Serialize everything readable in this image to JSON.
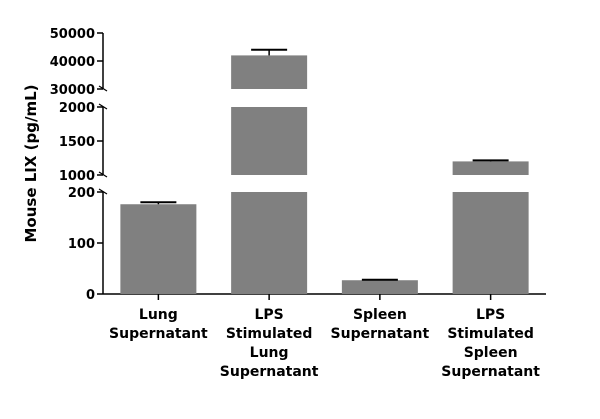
{
  "chart_data": {
    "type": "bar",
    "title": "",
    "xlabel": "",
    "ylabel": "Mouse LIX (pg/mL)",
    "y_axis_breaks": [
      {
        "range": [
          0,
          200
        ],
        "ticks": [
          0,
          100,
          200
        ],
        "tick_labels": [
          "0",
          "100",
          "200"
        ]
      },
      {
        "range": [
          1000,
          2000
        ],
        "ticks": [
          1000,
          1500,
          2000
        ],
        "tick_labels": [
          "1000",
          "1500",
          "2000"
        ]
      },
      {
        "range": [
          30000,
          50000
        ],
        "ticks": [
          30000,
          40000,
          50000
        ],
        "tick_labels": [
          "30000",
          "40000",
          "50000"
        ]
      }
    ],
    "categories": [
      [
        "Lung",
        "Supernatant"
      ],
      [
        "LPS",
        "Stimulated",
        "Lung",
        "Supernatant"
      ],
      [
        "Spleen",
        "Supernatant"
      ],
      [
        "LPS",
        "Stimulated",
        "Spleen",
        "Supernatant"
      ]
    ],
    "values": [
      176,
      42000,
      27,
      1200
    ],
    "errors": [
      4,
      2000,
      1,
      15
    ],
    "bar_color": "#808080"
  }
}
